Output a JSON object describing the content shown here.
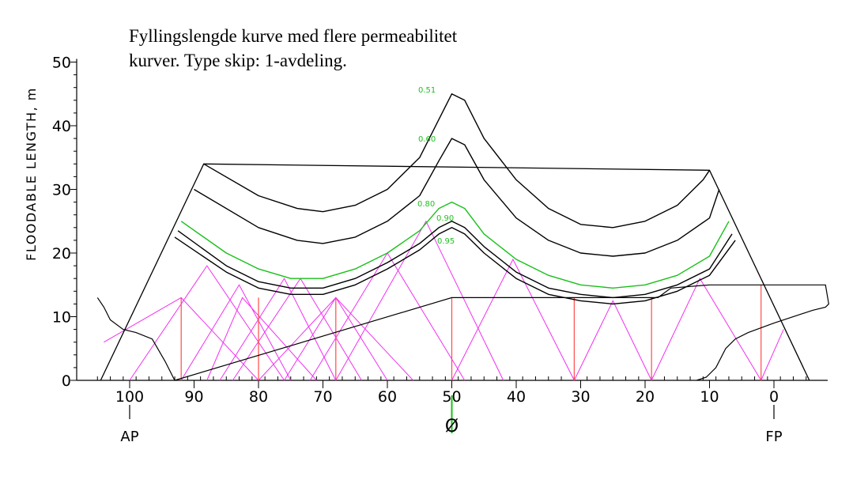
{
  "title": {
    "line1": "Fyllingslengde kurve med flere permeabilitet",
    "line2": "kurver. Type skip: 1-avdeling."
  },
  "chart_data": {
    "type": "line",
    "ylabel": "FLOODABLE LENGTH,  m",
    "xlim": [
      105,
      -5
    ],
    "ylim": [
      0,
      50
    ],
    "x_ticks": [
      "100",
      "90",
      "80",
      "70",
      "60",
      "50",
      "40",
      "30",
      "20",
      "10",
      "0"
    ],
    "y_ticks": [
      "0",
      "10",
      "20",
      "30",
      "40",
      "50"
    ],
    "x_markers": [
      {
        "label": "AP",
        "x": 100
      },
      {
        "label": "FP",
        "x": 0
      }
    ],
    "midship_symbol": "Ø",
    "colors": {
      "curve": "#000000",
      "curve_80": "#19c019",
      "triangles": "#f22ff2",
      "verticals": "#ff4a4a",
      "label": "#22c022"
    },
    "series": [
      {
        "name": "0.51",
        "color": "#000000",
        "x": [
          88.5,
          80,
          74,
          70,
          65,
          60,
          55,
          52,
          50,
          48,
          45,
          40,
          35,
          30,
          25,
          20,
          15,
          11,
          10
        ],
        "y": [
          34,
          29,
          27,
          26.5,
          27.5,
          30,
          35,
          41,
          45,
          44,
          38,
          31.5,
          27,
          24.5,
          24,
          25,
          27.5,
          31.5,
          33
        ]
      },
      {
        "name": "0.60",
        "color": "#000000",
        "x": [
          90,
          80,
          74,
          70,
          65,
          60,
          55,
          52,
          50,
          48,
          45,
          40,
          35,
          30,
          25,
          20,
          15,
          10,
          8.5
        ],
        "y": [
          30,
          24,
          22,
          21.5,
          22.5,
          25,
          29,
          34.5,
          38,
          37,
          31.5,
          25.5,
          22,
          20,
          19.5,
          20,
          22,
          25.5,
          30
        ]
      },
      {
        "name": "0.80",
        "color": "#19c019",
        "x": [
          92,
          85,
          80,
          75,
          70,
          65,
          60,
          55,
          52,
          50,
          48,
          45,
          40,
          35,
          30,
          25,
          20,
          15,
          10,
          7
        ],
        "y": [
          25,
          20,
          17.5,
          16,
          16,
          17.5,
          20,
          23.5,
          27,
          28,
          27,
          23,
          19,
          16.5,
          15,
          14.5,
          15,
          16.5,
          19.5,
          25
        ]
      },
      {
        "name": "0.90",
        "color": "#000000",
        "x": [
          92.5,
          85,
          80,
          75,
          70,
          65,
          60,
          55,
          52,
          50,
          48,
          45,
          40,
          35,
          30,
          25,
          20,
          15,
          10,
          6.5
        ],
        "y": [
          23.5,
          18,
          15.5,
          14.5,
          14.5,
          16,
          18.5,
          21.5,
          24,
          25,
          24,
          21,
          17,
          14.5,
          13.5,
          13,
          13.5,
          15,
          17.5,
          23
        ]
      },
      {
        "name": "0.95",
        "color": "#000000",
        "x": [
          93,
          85,
          80,
          75,
          70,
          65,
          60,
          55,
          52,
          50,
          48,
          45,
          40,
          35,
          30,
          25,
          20,
          15,
          10,
          6
        ],
        "y": [
          22.5,
          17,
          14.5,
          13.5,
          13.5,
          15,
          17.5,
          20.5,
          23,
          24,
          23,
          20,
          16,
          13.5,
          12.5,
          12,
          12.5,
          14,
          16.5,
          22
        ]
      }
    ],
    "envelope": {
      "x": [
        104.5,
        88.5,
        10,
        -5.5
      ],
      "y": [
        0,
        34,
        33,
        0
      ]
    },
    "triangles": [
      {
        "x": [
          104,
          92,
          80
        ],
        "y": [
          6,
          13,
          0
        ]
      },
      {
        "x": [
          100,
          88,
          76
        ],
        "y": [
          0,
          18,
          0
        ]
      },
      {
        "x": [
          92,
          83,
          75
        ],
        "y": [
          0,
          15,
          0
        ]
      },
      {
        "x": [
          88,
          82.5,
          71
        ],
        "y": [
          0,
          13,
          0
        ]
      },
      {
        "x": [
          86,
          76,
          68
        ],
        "y": [
          0,
          16,
          0
        ]
      },
      {
        "x": [
          84,
          73.5,
          64
        ],
        "y": [
          0,
          16,
          0
        ]
      },
      {
        "x": [
          80,
          68,
          56
        ],
        "y": [
          0,
          13,
          0
        ]
      },
      {
        "x": [
          76,
          68,
          60
        ],
        "y": [
          0,
          13,
          0
        ]
      },
      {
        "x": [
          72,
          60,
          48
        ],
        "y": [
          0,
          20,
          0
        ]
      },
      {
        "x": [
          68,
          54,
          42
        ],
        "y": [
          0,
          25,
          0
        ]
      },
      {
        "x": [
          50,
          40.5,
          31
        ],
        "y": [
          0,
          19,
          0
        ]
      },
      {
        "x": [
          31,
          25,
          19
        ],
        "y": [
          0,
          12.5,
          0
        ]
      },
      {
        "x": [
          19,
          11.5,
          2
        ],
        "y": [
          0,
          16,
          0
        ]
      },
      {
        "x": [
          2,
          -1.5
        ],
        "y": [
          0,
          8
        ]
      }
    ],
    "verticals": [
      {
        "x": 92,
        "y": 13
      },
      {
        "x": 80,
        "y": 13
      },
      {
        "x": 68,
        "y": 13
      },
      {
        "x": 50,
        "y": 13
      },
      {
        "x": 31,
        "y": 13
      },
      {
        "x": 19,
        "y": 13
      },
      {
        "x": 2,
        "y": 15
      }
    ],
    "hull": {
      "x": [
        105,
        104,
        103,
        101,
        99,
        96.5,
        94.5,
        93,
        50,
        18,
        16,
        10,
        -8,
        -8.5,
        -8,
        -6,
        0,
        4,
        6,
        7.5,
        9,
        10.5,
        12
      ],
      "y": [
        13,
        11.5,
        9.5,
        8,
        7.5,
        6.5,
        3,
        0,
        13,
        13,
        14.5,
        15,
        15,
        12,
        11.5,
        11,
        9,
        7.5,
        6.5,
        5,
        2,
        0.5,
        0
      ]
    }
  }
}
